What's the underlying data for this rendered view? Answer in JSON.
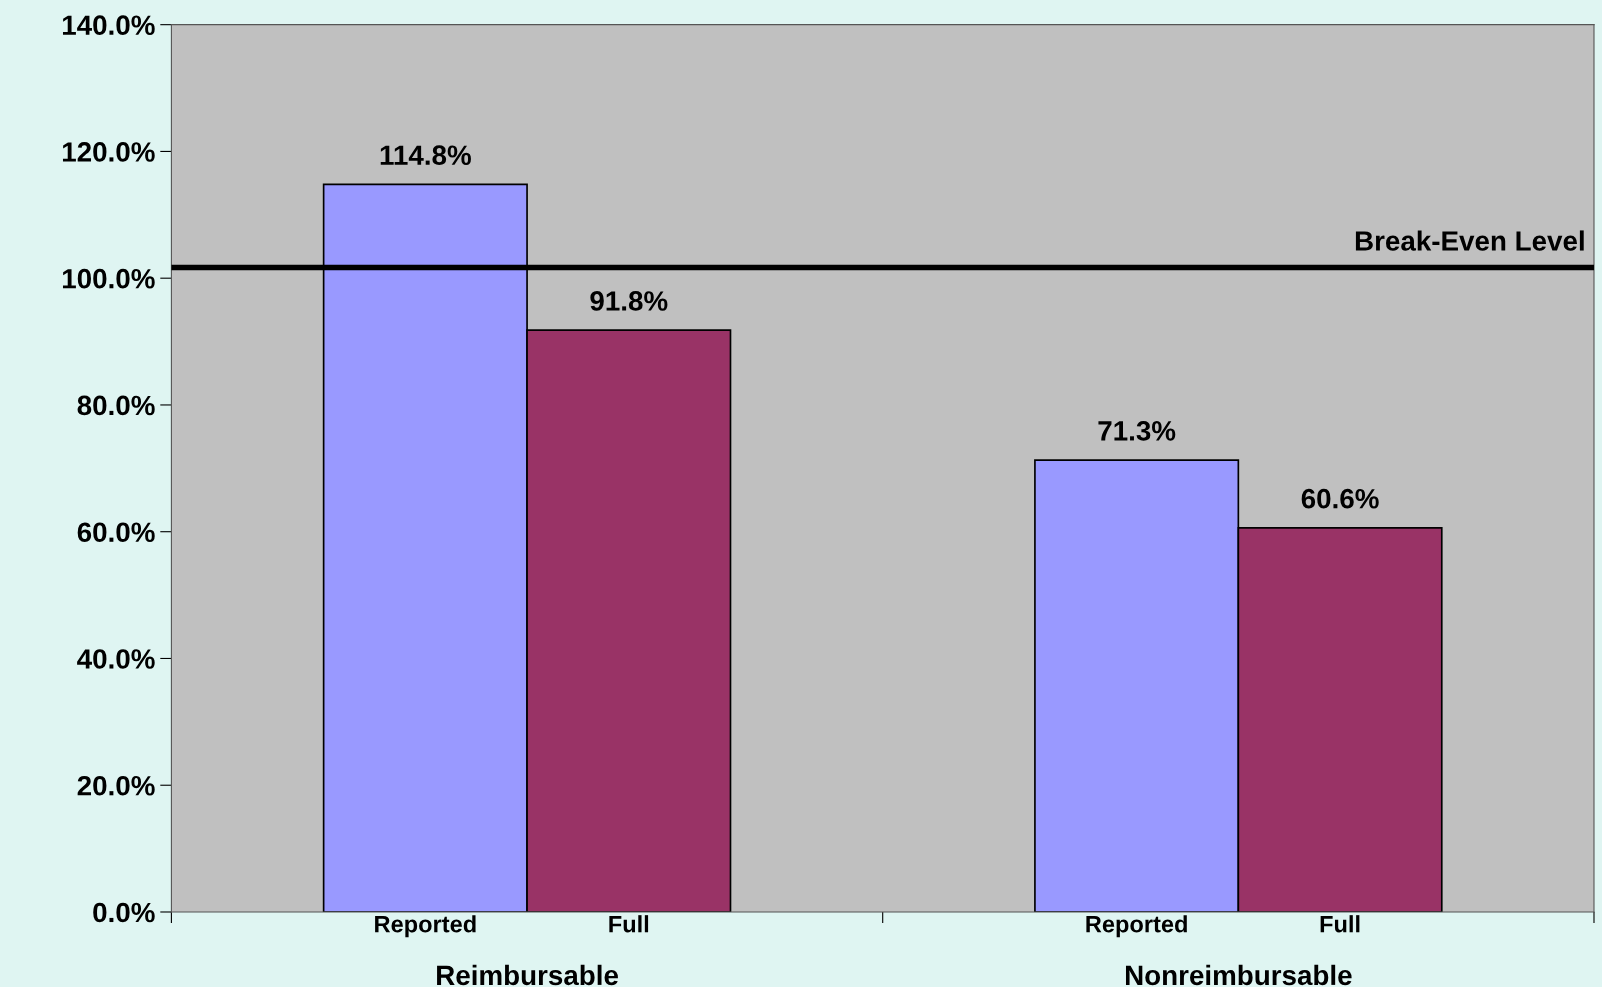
{
  "chart_data": {
    "type": "bar",
    "categories": [
      "Reimbursable",
      "Nonreimbursable"
    ],
    "series": [
      {
        "name": "Reported",
        "color": "#9999ff",
        "values": [
          114.8,
          71.3
        ]
      },
      {
        "name": "Full",
        "color": "#993366",
        "values": [
          91.8,
          60.6
        ]
      }
    ],
    "value_labels": [
      [
        "114.8%",
        "71.3%"
      ],
      [
        "91.8%",
        "60.6%"
      ]
    ],
    "ylim": [
      0,
      140
    ],
    "yticks": [
      {
        "value": 0,
        "label": "0.0%"
      },
      {
        "value": 20,
        "label": "20.0%"
      },
      {
        "value": 40,
        "label": "40.0%"
      },
      {
        "value": 60,
        "label": "60.0%"
      },
      {
        "value": 80,
        "label": "80.0%"
      },
      {
        "value": 100,
        "label": "100.0%"
      },
      {
        "value": 120,
        "label": "120.0%"
      },
      {
        "value": 140,
        "label": "140.0%"
      }
    ],
    "ref_lines": [
      {
        "axis": "y",
        "value": 101.7,
        "label": "Break-Even Level",
        "color": "#000000",
        "line_style": "solid"
      }
    ],
    "grid": false,
    "legend": false
  }
}
